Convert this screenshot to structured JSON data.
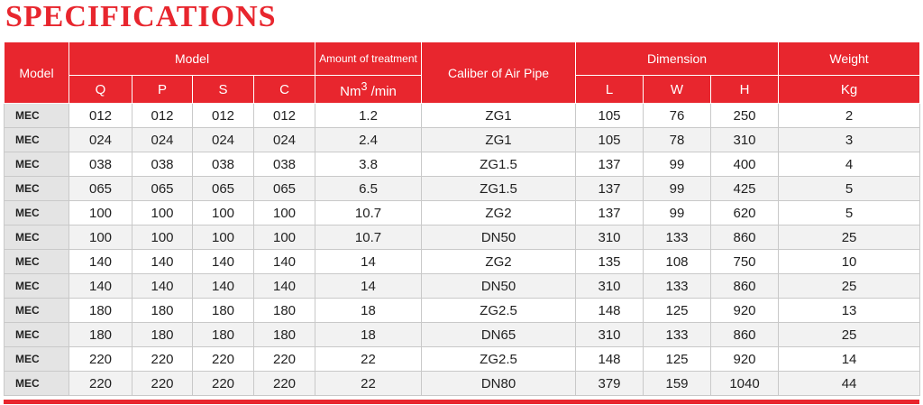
{
  "title": "SPECIFICATIONS",
  "table": {
    "header": {
      "model_label": "Model",
      "model_group": "Model",
      "amount": "Amount of treatment",
      "caliber": "Caliber of Air Pipe",
      "dimension": "Dimension",
      "weight": "Weight",
      "sub": [
        "Q",
        "P",
        "S",
        "C"
      ],
      "amount_unit": {
        "base": "Nm",
        "sup": "3",
        "rest": "/min"
      },
      "dimension_sub": [
        "L",
        "W",
        "H"
      ],
      "weight_unit": "Kg"
    },
    "rows": [
      [
        "MEC",
        "012",
        "012",
        "012",
        "012",
        "1.2",
        "ZG1",
        "105",
        "76",
        "250",
        "2"
      ],
      [
        "MEC",
        "024",
        "024",
        "024",
        "024",
        "2.4",
        "ZG1",
        "105",
        "78",
        "310",
        "3"
      ],
      [
        "MEC",
        "038",
        "038",
        "038",
        "038",
        "3.8",
        "ZG1.5",
        "137",
        "99",
        "400",
        "4"
      ],
      [
        "MEC",
        "065",
        "065",
        "065",
        "065",
        "6.5",
        "ZG1.5",
        "137",
        "99",
        "425",
        "5"
      ],
      [
        "MEC",
        "100",
        "100",
        "100",
        "100",
        "10.7",
        "ZG2",
        "137",
        "99",
        "620",
        "5"
      ],
      [
        "MEC",
        "100",
        "100",
        "100",
        "100",
        "10.7",
        "DN50",
        "310",
        "133",
        "860",
        "25"
      ],
      [
        "MEC",
        "140",
        "140",
        "140",
        "140",
        "14",
        "ZG2",
        "135",
        "108",
        "750",
        "10"
      ],
      [
        "MEC",
        "140",
        "140",
        "140",
        "140",
        "14",
        "DN50",
        "310",
        "133",
        "860",
        "25"
      ],
      [
        "MEC",
        "180",
        "180",
        "180",
        "180",
        "18",
        "ZG2.5",
        "148",
        "125",
        "920",
        "13"
      ],
      [
        "MEC",
        "180",
        "180",
        "180",
        "180",
        "18",
        "DN65",
        "310",
        "133",
        "860",
        "25"
      ],
      [
        "MEC",
        "220",
        "220",
        "220",
        "220",
        "22",
        "ZG2.5",
        "148",
        "125",
        "920",
        "14"
      ],
      [
        "MEC",
        "220",
        "220",
        "220",
        "220",
        "22",
        "DN80",
        "379",
        "159",
        "1040",
        "44"
      ]
    ]
  }
}
